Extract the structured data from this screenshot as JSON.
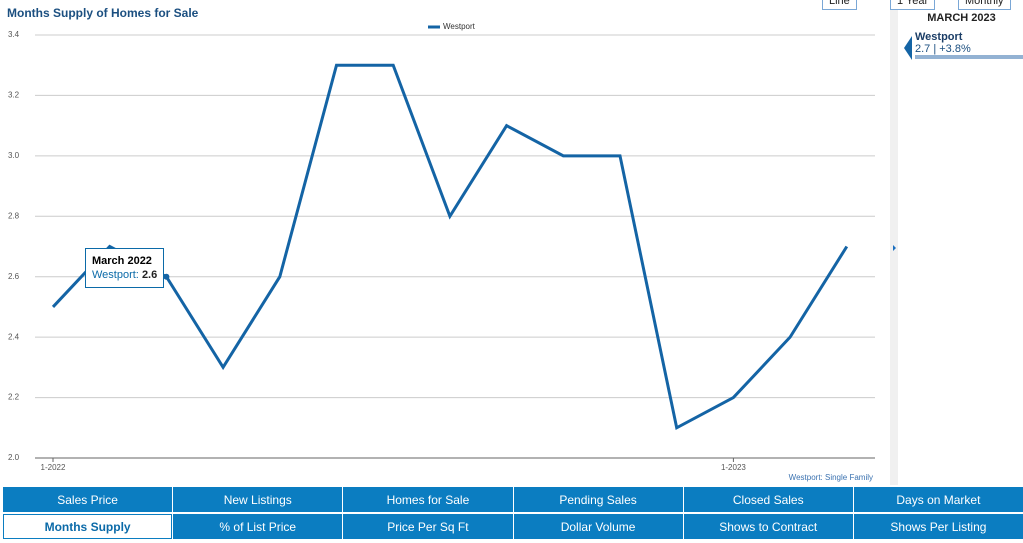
{
  "chart_data": {
    "type": "line",
    "title": "Months Supply of Homes for Sale",
    "categories": [
      "1-2022",
      null,
      null,
      null,
      null,
      null,
      null,
      null,
      null,
      null,
      null,
      null,
      "1-2023",
      null,
      null
    ],
    "series": [
      {
        "name": "Westport",
        "color": "#1464a5",
        "values": [
          2.5,
          2.7,
          2.6,
          2.3,
          2.6,
          3.3,
          3.3,
          2.8,
          3.1,
          3.0,
          3.0,
          2.1,
          2.2,
          2.4,
          2.7
        ]
      }
    ],
    "ylim": [
      2.0,
      3.4
    ],
    "yticks": [
      {
        "value": 2.0,
        "label": "2.0"
      },
      2.2,
      2.4,
      2.6,
      2.8,
      {
        "value": 3.0,
        "label": "3.0"
      },
      3.2,
      3.4
    ],
    "grid": true,
    "legend": "top",
    "footnote": "Westport: Single Family"
  },
  "tooltip": {
    "title": "March 2022",
    "series": "Westport:",
    "value": 2.6
  },
  "controls": [
    "Line",
    "1 Year",
    "Monthly"
  ],
  "sidebar": {
    "period": "MARCH 2023",
    "name": "Westport",
    "text": "2.7 | +3.8%"
  },
  "tabs": [
    [
      "Sales Price",
      "New Listings",
      "Homes for Sale",
      "Pending Sales",
      "Closed Sales",
      "Days on Market"
    ],
    [
      "Months Supply",
      "% of List Price",
      "Price Per Sq Ft",
      "Dollar Volume",
      "Shows to Contract",
      "Shows Per Listing"
    ]
  ],
  "active_tab": "Months Supply"
}
